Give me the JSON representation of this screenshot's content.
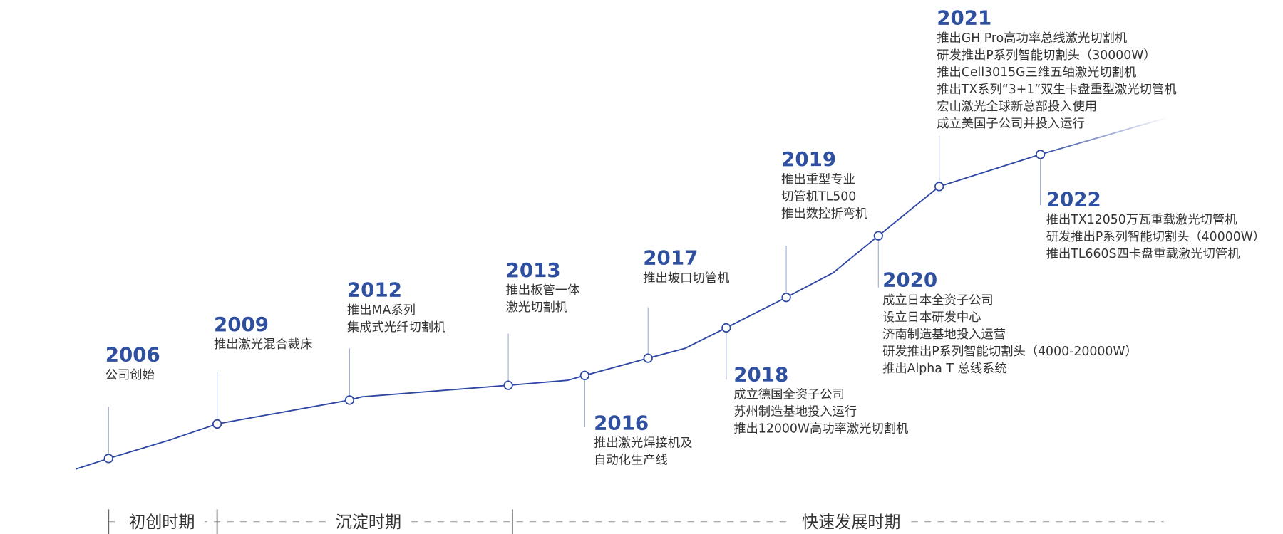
{
  "timeline": {
    "events": [
      {
        "year": "2006",
        "items": [
          "公司创始"
        ]
      },
      {
        "year": "2009",
        "items": [
          "推出激光混合裁床"
        ]
      },
      {
        "year": "2012",
        "items": [
          "推出MA系列",
          "集成式光纤切割机"
        ]
      },
      {
        "year": "2013",
        "items": [
          "推出板管一体",
          "激光切割机"
        ]
      },
      {
        "year": "2016",
        "items": [
          "推出激光焊接机及",
          "自动化生产线"
        ]
      },
      {
        "year": "2017",
        "items": [
          "推出坡口切管机"
        ]
      },
      {
        "year": "2018",
        "items": [
          "成立德国全资子公司",
          "苏州制造基地投入运行",
          "推出12000W高功率激光切割机"
        ]
      },
      {
        "year": "2019",
        "items": [
          "推出重型专业",
          "切管机TL500",
          "推出数控折弯机"
        ]
      },
      {
        "year": "2020",
        "items": [
          "成立日本全资子公司",
          "设立日本研发中心",
          "济南制造基地投入运营",
          "研发推出P系列智能切割头（4000-20000W）",
          "推出Alpha T 总线系统"
        ]
      },
      {
        "year": "2021",
        "items": [
          "推出GH Pro高功率总线激光切割机",
          "研发推出P系列智能切割头（30000W）",
          "推出Cell3015G三维五轴激光切割机",
          "推出TX系列“3+1”双生卡盘重型激光切管机",
          "宏山激光全球新总部投入使用",
          "成立美国子公司并投入运行"
        ]
      },
      {
        "year": "2022",
        "items": [
          "推出TX12050万瓦重载激光切管机",
          "研发推出P系列智能切割头（40000W）",
          "推出TL660S四卡盘重载激光切管机"
        ]
      }
    ],
    "periods": [
      "初创时期",
      "沉淀时期",
      "快速发展时期"
    ]
  }
}
